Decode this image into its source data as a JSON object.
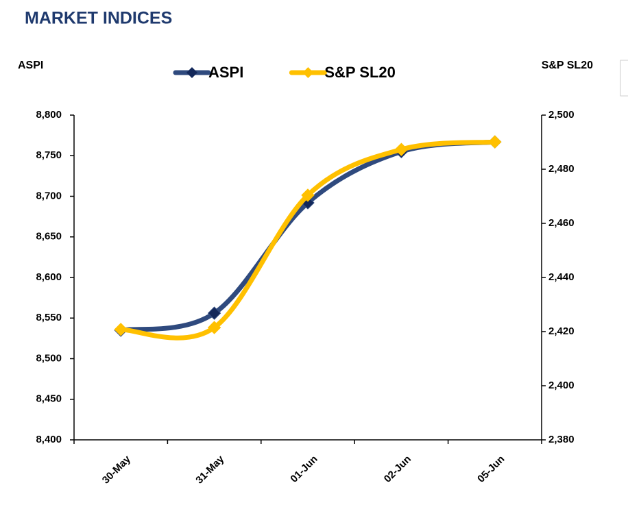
{
  "chart_data": {
    "type": "line",
    "title": "MARKET INDICES",
    "y_label": "ASPI",
    "y2_label": "S&P SL20",
    "categories": [
      "30-May",
      "31-May",
      "01-Jun",
      "02-Jun",
      "05-Jun"
    ],
    "series": [
      {
        "name": "ASPI",
        "color": "#2f4a7e",
        "marker_color": "#13285a",
        "axis": "y",
        "values": [
          8535,
          8556,
          8692,
          8755,
          8767
        ]
      },
      {
        "name": "S&P SL20",
        "color": "#ffc000",
        "marker_color": "#ffc000",
        "axis": "y2",
        "values": [
          2420.8,
          2421.5,
          2470.4,
          2487.3,
          2490.1
        ]
      }
    ],
    "ylim": [
      8400,
      8800
    ],
    "yticks": [
      {
        "value": 8400,
        "label": "8,400"
      },
      {
        "value": 8450,
        "label": "8,450"
      },
      {
        "value": 8500,
        "label": "8,500"
      },
      {
        "value": 8550,
        "label": "8,550"
      },
      {
        "value": 8600,
        "label": "8,600"
      },
      {
        "value": 8650,
        "label": "8,650"
      },
      {
        "value": 8700,
        "label": "8,700"
      },
      {
        "value": 8750,
        "label": "8,750"
      },
      {
        "value": 8800,
        "label": "8,800"
      }
    ],
    "y2lim": [
      2380,
      2500
    ],
    "y2ticks": [
      {
        "value": 2380,
        "label": "2,380"
      },
      {
        "value": 2400,
        "label": "2,400"
      },
      {
        "value": 2420,
        "label": "2,420"
      },
      {
        "value": 2440,
        "label": "2,440"
      },
      {
        "value": 2460,
        "label": "2,460"
      },
      {
        "value": 2480,
        "label": "2,480"
      },
      {
        "value": 2500,
        "label": "2,500"
      }
    ],
    "legend": "top"
  }
}
